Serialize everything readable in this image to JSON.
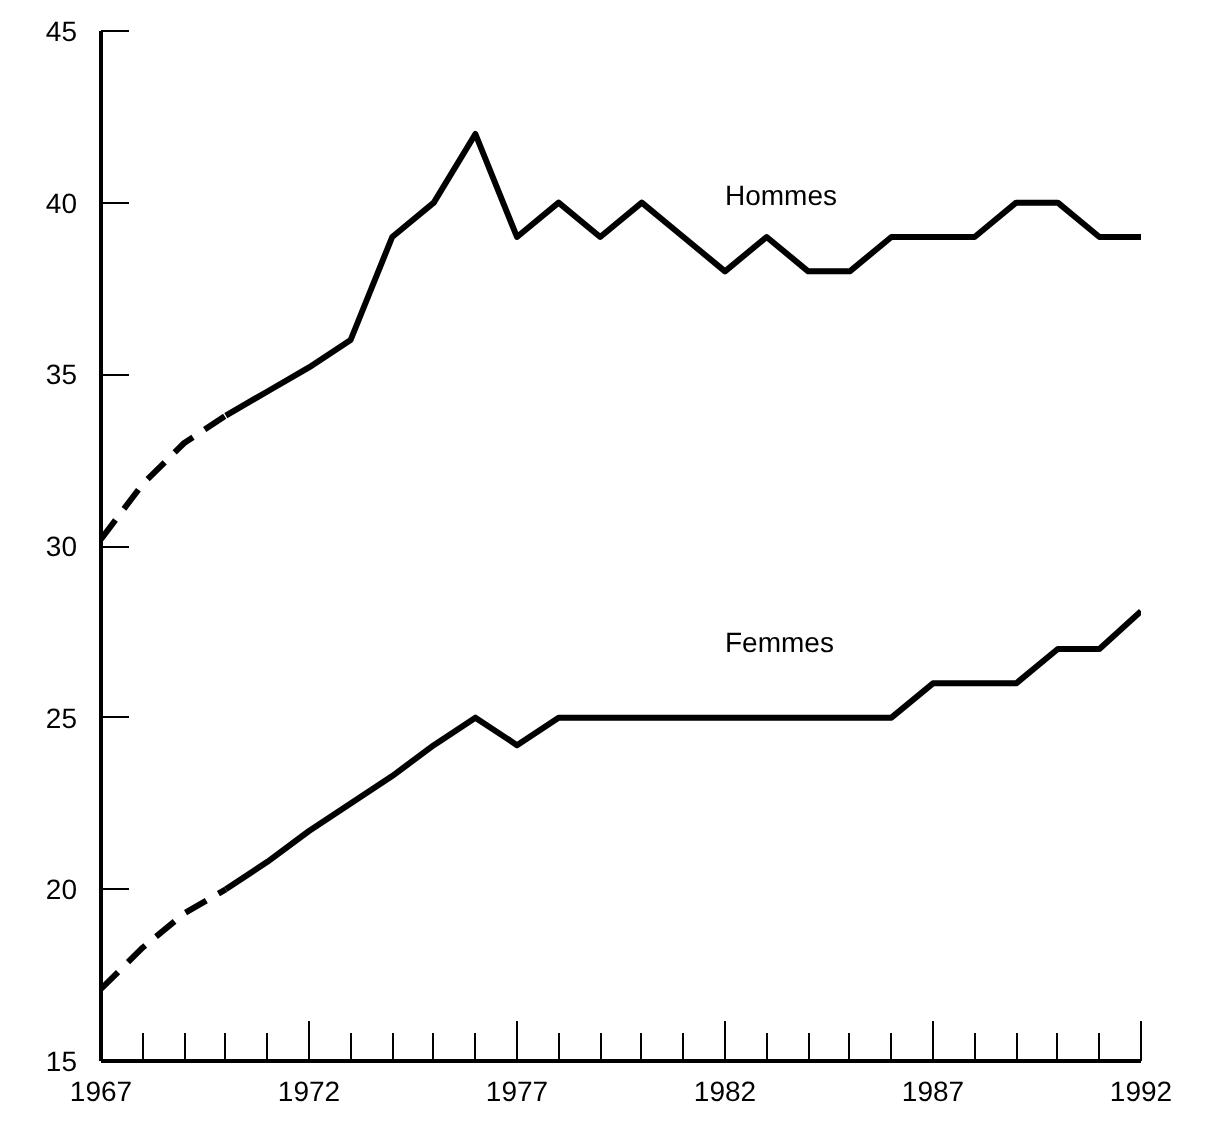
{
  "chart_data": {
    "type": "line",
    "xlim": [
      1967,
      1992
    ],
    "ylim": [
      15,
      45
    ],
    "xticks": [
      1967,
      1972,
      1977,
      1982,
      1987,
      1992
    ],
    "yticks": [
      15,
      20,
      25,
      30,
      35,
      40,
      45
    ],
    "grid": false,
    "marker": "none",
    "series": [
      {
        "color": "#000000",
        "line_style": "dashed",
        "x": [
          1967,
          1968,
          1969,
          1970
        ],
        "values": [
          30.2,
          31.8,
          33,
          33.8
        ]
      },
      {
        "name": "Hommes",
        "color": "#000000",
        "line_style": "solid",
        "x": [
          1970,
          1971,
          1972,
          1973,
          1974,
          1975,
          1976,
          1977,
          1978,
          1979,
          1980,
          1981,
          1982,
          1983,
          1984,
          1985,
          1986,
          1987,
          1988,
          1989,
          1990,
          1991,
          1992
        ],
        "values": [
          33.8,
          34.5,
          35.2,
          36,
          39,
          40,
          42,
          39,
          40,
          39,
          40,
          39,
          38,
          39,
          38,
          38,
          39,
          39,
          39,
          40,
          40,
          39,
          39
        ]
      },
      {
        "color": "#000000",
        "line_style": "dashed",
        "x": [
          1967,
          1968,
          1969,
          1970
        ],
        "values": [
          17.1,
          18.3,
          19.3,
          20
        ]
      },
      {
        "name": "Femmes",
        "color": "#000000",
        "line_style": "solid",
        "x": [
          1970,
          1971,
          1972,
          1973,
          1974,
          1975,
          1976,
          1977,
          1978,
          1979,
          1980,
          1981,
          1982,
          1983,
          1984,
          1985,
          1986,
          1987,
          1988,
          1989,
          1990,
          1991,
          1992
        ],
        "values": [
          20,
          20.8,
          21.7,
          22.5,
          23.3,
          24.2,
          25,
          24.2,
          25,
          25,
          25,
          25,
          25,
          25,
          25,
          25,
          25,
          26,
          26,
          26,
          27,
          27,
          28.1
        ]
      }
    ]
  }
}
